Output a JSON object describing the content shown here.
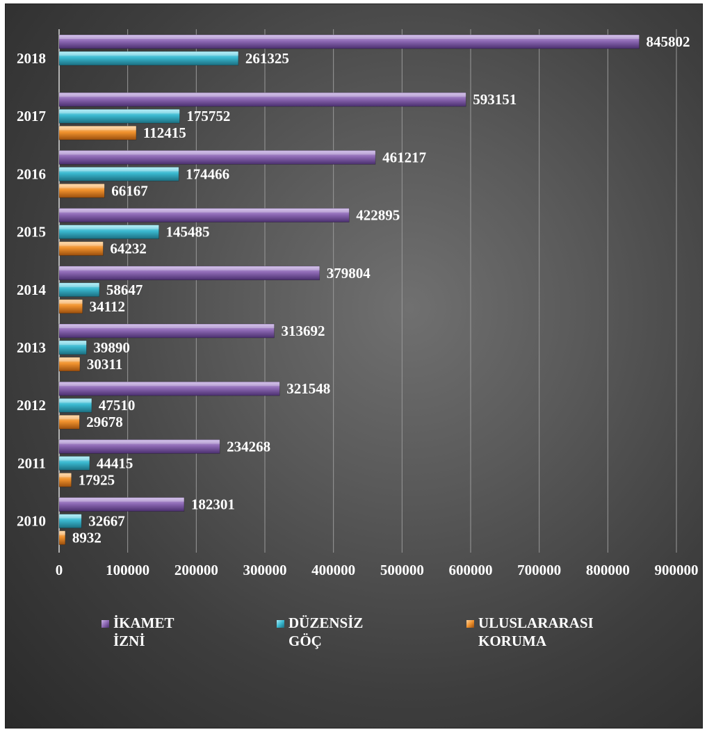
{
  "chart_data": {
    "type": "bar",
    "orientation": "horizontal",
    "categories": [
      "2018",
      "2017",
      "2016",
      "2015",
      "2014",
      "2013",
      "2012",
      "2011",
      "2010"
    ],
    "series": [
      {
        "name": "İKAMET\nİZNİ",
        "color": "#8e6ab5",
        "values": [
          845802,
          593151,
          461217,
          422895,
          379804,
          313692,
          321548,
          234268,
          182301
        ],
        "labels": [
          "845802",
          "593151",
          "461217",
          "422895",
          "379804",
          "313692",
          "321548",
          "234268",
          "182301"
        ]
      },
      {
        "name": "DÜZENSİZ\nGÖÇ",
        "color": "#3ab8cf",
        "values": [
          261325,
          175752,
          174466,
          145485,
          58647,
          39890,
          47510,
          44415,
          32667
        ],
        "labels": [
          "261325",
          "175752",
          "174466",
          "145485",
          "58647",
          "39890",
          "47510",
          "44415",
          "32667"
        ]
      },
      {
        "name": "ULUSLARARASI\nKORUMA",
        "color": "#f0922e",
        "values": [
          null,
          112415,
          66167,
          64232,
          34112,
          30311,
          29678,
          17925,
          8932
        ],
        "labels": [
          "",
          "112415",
          "66167",
          "64232",
          "34112",
          "30311",
          "29678",
          "17925",
          "8932"
        ]
      }
    ],
    "xlim": [
      0,
      900000
    ],
    "xticks": [
      "0",
      "100000",
      "200000",
      "300000",
      "400000",
      "500000",
      "600000",
      "700000",
      "800000",
      "900000"
    ],
    "grid": true,
    "legend_position": "bottom"
  }
}
